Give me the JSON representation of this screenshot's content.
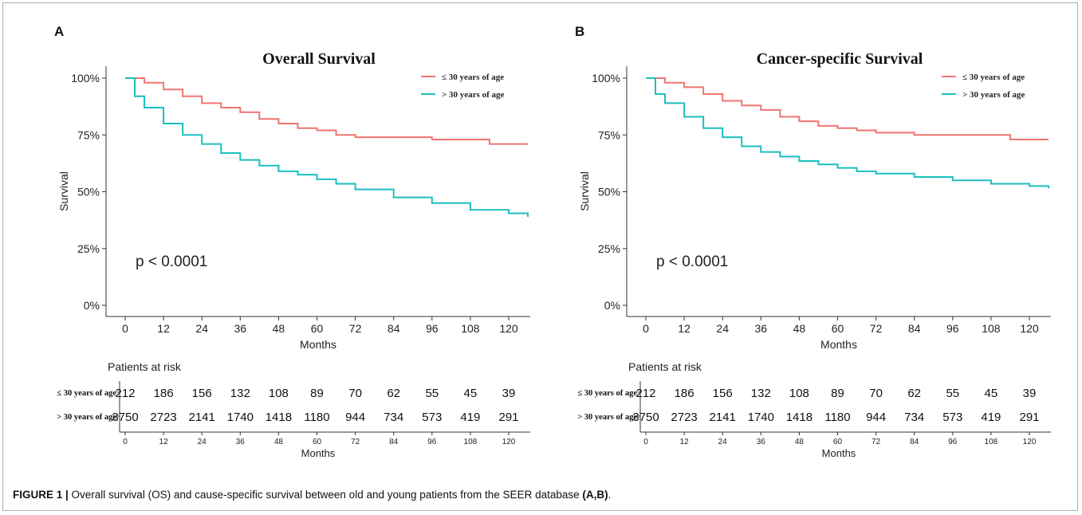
{
  "caption": {
    "label": "FIGURE 1 |",
    "text": " Overall survival (OS) and cause-specific survival between old and young patients from the SEER database ",
    "ref": "(A,B)",
    "end": "."
  },
  "colors": {
    "young": "#f07470",
    "old": "#1bbfc0",
    "axis": "#333333"
  },
  "risk_table": {
    "title": "Patients at risk",
    "xlabel": "Months",
    "rows": [
      "≤ 30 years of age",
      "> 30 years of age"
    ]
  },
  "chart_data": [
    {
      "panel": "A",
      "type": "line",
      "title": "Overall Survival",
      "xlabel": "Months",
      "ylabel": "Survival",
      "xlim": [
        0,
        126
      ],
      "ylim": [
        0,
        1
      ],
      "xticks": [
        0,
        12,
        24,
        36,
        48,
        60,
        72,
        84,
        96,
        108,
        120
      ],
      "yticks": [
        "0%",
        "25%",
        "50%",
        "75%",
        "100%"
      ],
      "pvalue": "p < 0.0001",
      "legend_position": "top-right",
      "series": [
        {
          "name": "≤ 30 years of age",
          "x": [
            0,
            6,
            12,
            18,
            24,
            30,
            36,
            42,
            48,
            54,
            60,
            66,
            72,
            84,
            96,
            108,
            114,
            126
          ],
          "y": [
            1.0,
            0.98,
            0.95,
            0.92,
            0.89,
            0.87,
            0.85,
            0.82,
            0.8,
            0.78,
            0.77,
            0.75,
            0.74,
            0.74,
            0.73,
            0.73,
            0.71,
            0.71
          ]
        },
        {
          "name": "> 30 years of age",
          "x": [
            0,
            3,
            6,
            12,
            18,
            24,
            30,
            36,
            42,
            48,
            54,
            60,
            66,
            72,
            84,
            96,
            108,
            120,
            126
          ],
          "y": [
            1.0,
            0.92,
            0.87,
            0.8,
            0.75,
            0.71,
            0.67,
            0.64,
            0.615,
            0.59,
            0.575,
            0.555,
            0.535,
            0.51,
            0.475,
            0.45,
            0.42,
            0.405,
            0.39
          ]
        }
      ],
      "risk": {
        "young": [
          212,
          186,
          156,
          132,
          108,
          89,
          70,
          62,
          55,
          45,
          39
        ],
        "old": [
          3750,
          2723,
          2141,
          1740,
          1418,
          1180,
          944,
          734,
          573,
          419,
          291
        ]
      }
    },
    {
      "panel": "B",
      "type": "line",
      "title": "Cancer-specific Survival",
      "xlabel": "Months",
      "ylabel": "Survival",
      "xlim": [
        0,
        126
      ],
      "ylim": [
        0,
        1
      ],
      "xticks": [
        0,
        12,
        24,
        36,
        48,
        60,
        72,
        84,
        96,
        108,
        120
      ],
      "yticks": [
        "0%",
        "25%",
        "50%",
        "75%",
        "100%"
      ],
      "pvalue": "p < 0.0001",
      "legend_position": "top-right",
      "series": [
        {
          "name": "≤ 30 years of age",
          "x": [
            0,
            6,
            12,
            18,
            24,
            30,
            36,
            42,
            48,
            54,
            60,
            66,
            72,
            84,
            96,
            108,
            114,
            126
          ],
          "y": [
            1.0,
            0.98,
            0.96,
            0.93,
            0.9,
            0.88,
            0.86,
            0.83,
            0.81,
            0.79,
            0.78,
            0.77,
            0.76,
            0.75,
            0.75,
            0.75,
            0.73,
            0.73
          ]
        },
        {
          "name": "> 30 years of age",
          "x": [
            0,
            3,
            6,
            12,
            18,
            24,
            30,
            36,
            42,
            48,
            54,
            60,
            66,
            72,
            84,
            96,
            108,
            120,
            126
          ],
          "y": [
            1.0,
            0.93,
            0.89,
            0.83,
            0.78,
            0.74,
            0.7,
            0.675,
            0.655,
            0.635,
            0.62,
            0.605,
            0.59,
            0.58,
            0.565,
            0.55,
            0.535,
            0.525,
            0.515
          ]
        }
      ],
      "risk": {
        "young": [
          212,
          186,
          156,
          132,
          108,
          89,
          70,
          62,
          55,
          45,
          39
        ],
        "old": [
          3750,
          2723,
          2141,
          1740,
          1418,
          1180,
          944,
          734,
          573,
          419,
          291
        ]
      }
    }
  ]
}
